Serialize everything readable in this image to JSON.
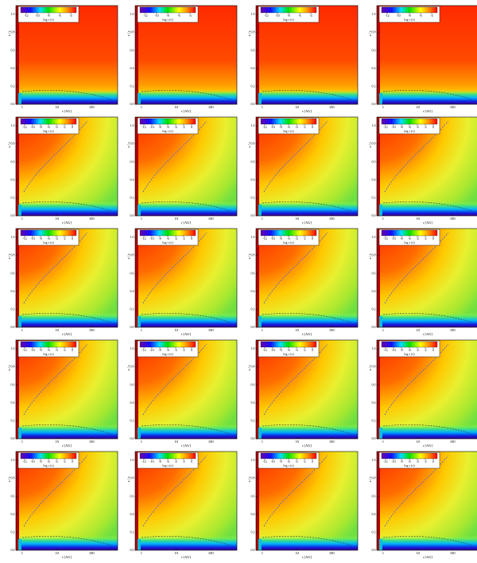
{
  "chart_data": [
    {
      "type": "heatmap",
      "xlabel": "r [AU]",
      "ylabel": "z / r",
      "colorbar_label": "log τ (ν)",
      "xscale": "log",
      "xlim": [
        0.66,
        560
      ],
      "xticks": [
        1,
        10,
        100
      ],
      "ylim": [
        0,
        1.1
      ],
      "yticks": [
        {
          "value": 0,
          "label": "0.0"
        },
        {
          "value": 0.2,
          "label": "0.2"
        },
        {
          "value": 0.4,
          "label": "0.4"
        },
        {
          "value": 0.6,
          "label": "0.6"
        },
        {
          "value": 0.8,
          "label": "0.8"
        },
        {
          "value": 1,
          "label": "1.0"
        }
      ],
      "clim": [
        -13,
        -3
      ],
      "cticks": [
        -12,
        -10,
        -8,
        -6,
        -4
      ]
    },
    {
      "type": "heatmap",
      "xlabel": "r [AU]",
      "ylabel": "z / r",
      "colorbar_label": "log τ (ν)",
      "xscale": "log",
      "xlim": [
        0.66,
        560
      ],
      "xticks": [
        1,
        10,
        100
      ],
      "ylim": [
        0,
        1.1
      ],
      "yticks": [
        {
          "value": 0,
          "label": "0.0"
        },
        {
          "value": 0.2,
          "label": "0.2"
        },
        {
          "value": 0.4,
          "label": "0.4"
        },
        {
          "value": 0.6,
          "label": "0.6"
        },
        {
          "value": 0.8,
          "label": "0.8"
        },
        {
          "value": 1,
          "label": "1.0"
        }
      ],
      "clim": [
        -13,
        -3
      ],
      "cticks": [
        -12,
        -10,
        -8,
        -6,
        -4
      ]
    },
    {
      "type": "heatmap",
      "xlabel": "r [AU]",
      "ylabel": "z / r",
      "colorbar_label": "log τ (ν)",
      "xscale": "log",
      "xlim": [
        0.66,
        560
      ],
      "xticks": [
        1,
        10,
        100
      ],
      "ylim": [
        0,
        1.1
      ],
      "yticks": [
        {
          "value": 0,
          "label": "0.0"
        },
        {
          "value": 0.2,
          "label": "0.2"
        },
        {
          "value": 0.4,
          "label": "0.4"
        },
        {
          "value": 0.6,
          "label": "0.6"
        },
        {
          "value": 0.8,
          "label": "0.8"
        },
        {
          "value": 1,
          "label": "1.0"
        }
      ],
      "clim": [
        -13,
        -3
      ],
      "cticks": [
        -12,
        -10,
        -8,
        -6,
        -4
      ]
    },
    {
      "type": "heatmap",
      "xlabel": "r [AU]",
      "ylabel": "z / r",
      "colorbar_label": "log τ (ν)",
      "xscale": "log",
      "xlim": [
        0.66,
        560
      ],
      "xticks": [
        1,
        10,
        100
      ],
      "ylim": [
        0,
        1.1
      ],
      "yticks": [
        {
          "value": 0,
          "label": "0.0"
        },
        {
          "value": 0.2,
          "label": "0.2"
        },
        {
          "value": 0.4,
          "label": "0.4"
        },
        {
          "value": 0.6,
          "label": "0.6"
        },
        {
          "value": 0.8,
          "label": "0.8"
        },
        {
          "value": 1,
          "label": "1.0"
        }
      ],
      "clim": [
        -13,
        -3
      ],
      "cticks": [
        -12,
        -10,
        -8,
        -6,
        -4
      ]
    },
    {
      "type": "heatmap",
      "xlabel": "r [AU]",
      "ylabel": "z / r",
      "colorbar_label": "log τ (ν)",
      "xscale": "log",
      "xlim": [
        0.66,
        560
      ],
      "xticks": [
        1,
        10,
        100
      ],
      "ylim": [
        0,
        1.1
      ],
      "yticks": [
        {
          "value": 0,
          "label": "0.0"
        },
        {
          "value": 0.2,
          "label": "0.2"
        },
        {
          "value": 0.4,
          "label": "0.4"
        },
        {
          "value": 0.6,
          "label": "0.6"
        },
        {
          "value": 0.8,
          "label": "0.8"
        },
        {
          "value": 1,
          "label": "1.0"
        }
      ],
      "clim": [
        -13,
        1
      ],
      "cticks": [
        -12,
        -10,
        -8,
        -6,
        -4,
        -2,
        0
      ]
    },
    {
      "type": "heatmap",
      "xlabel": "r [AU]",
      "ylabel": "z / r",
      "colorbar_label": "log τ (ν)",
      "xscale": "log",
      "xlim": [
        0.66,
        560
      ],
      "xticks": [
        1,
        10,
        100
      ],
      "ylim": [
        0,
        1.1
      ],
      "yticks": [
        {
          "value": 0,
          "label": "0.0"
        },
        {
          "value": 0.2,
          "label": "0.2"
        },
        {
          "value": 0.4,
          "label": "0.4"
        },
        {
          "value": 0.6,
          "label": "0.6"
        },
        {
          "value": 0.8,
          "label": "0.8"
        },
        {
          "value": 1,
          "label": "1.0"
        }
      ],
      "clim": [
        -13,
        1
      ],
      "cticks": [
        -12,
        -10,
        -8,
        -6,
        -4,
        -2,
        0
      ]
    },
    {
      "type": "heatmap",
      "xlabel": "r [AU]",
      "ylabel": "z / r",
      "colorbar_label": "log τ (ν)",
      "xscale": "log",
      "xlim": [
        0.66,
        560
      ],
      "xticks": [
        1,
        10,
        100
      ],
      "ylim": [
        0,
        1.1
      ],
      "yticks": [
        {
          "value": 0,
          "label": "0.0"
        },
        {
          "value": 0.2,
          "label": "0.2"
        },
        {
          "value": 0.4,
          "label": "0.4"
        },
        {
          "value": 0.6,
          "label": "0.6"
        },
        {
          "value": 0.8,
          "label": "0.8"
        },
        {
          "value": 1,
          "label": "1.0"
        }
      ],
      "clim": [
        -13,
        1
      ],
      "cticks": [
        -12,
        -10,
        -8,
        -6,
        -4,
        -2,
        0
      ]
    },
    {
      "type": "heatmap",
      "xlabel": "r [AU]",
      "ylabel": "z / r",
      "colorbar_label": "log τ (ν)",
      "xscale": "log",
      "xlim": [
        0.66,
        560
      ],
      "xticks": [
        1,
        10,
        100
      ],
      "ylim": [
        0,
        1.1
      ],
      "yticks": [
        {
          "value": 0,
          "label": "0.0"
        },
        {
          "value": 0.2,
          "label": "0.2"
        },
        {
          "value": 0.4,
          "label": "0.4"
        },
        {
          "value": 0.6,
          "label": "0.6"
        },
        {
          "value": 0.8,
          "label": "0.8"
        },
        {
          "value": 1,
          "label": "1.0"
        }
      ],
      "clim": [
        -13,
        1
      ],
      "cticks": [
        -12,
        -10,
        -8,
        -6,
        -4,
        -2,
        0
      ]
    },
    {
      "type": "heatmap",
      "xlabel": "r [AU]",
      "ylabel": "z / r",
      "colorbar_label": "log τ (ν)",
      "xscale": "log",
      "xlim": [
        0.66,
        560
      ],
      "xticks": [
        1,
        10,
        100
      ],
      "ylim": [
        0,
        1.1
      ],
      "yticks": [
        {
          "value": 0,
          "label": "0.0"
        },
        {
          "value": 0.2,
          "label": "0.2"
        },
        {
          "value": 0.4,
          "label": "0.4"
        },
        {
          "value": 0.6,
          "label": "0.6"
        },
        {
          "value": 0.8,
          "label": "0.8"
        },
        {
          "value": 1,
          "label": "1.0"
        }
      ],
      "clim": [
        -13,
        1
      ],
      "cticks": [
        -12,
        -10,
        -8,
        -6,
        -4,
        -2,
        0
      ]
    },
    {
      "type": "heatmap",
      "xlabel": "r [AU]",
      "ylabel": "z / r",
      "colorbar_label": "log τ (ν)",
      "xscale": "log",
      "xlim": [
        0.66,
        560
      ],
      "xticks": [
        1,
        10,
        100
      ],
      "ylim": [
        0,
        1.1
      ],
      "yticks": [
        {
          "value": 0,
          "label": "0.0"
        },
        {
          "value": 0.2,
          "label": "0.2"
        },
        {
          "value": 0.4,
          "label": "0.4"
        },
        {
          "value": 0.6,
          "label": "0.6"
        },
        {
          "value": 0.8,
          "label": "0.8"
        },
        {
          "value": 1,
          "label": "1.0"
        }
      ],
      "clim": [
        -13,
        1
      ],
      "cticks": [
        -12,
        -10,
        -8,
        -6,
        -4,
        -2,
        0
      ]
    },
    {
      "type": "heatmap",
      "xlabel": "r [AU]",
      "ylabel": "z / r",
      "colorbar_label": "log τ (ν)",
      "xscale": "log",
      "xlim": [
        0.66,
        560
      ],
      "xticks": [
        1,
        10,
        100
      ],
      "ylim": [
        0,
        1.1
      ],
      "yticks": [
        {
          "value": 0,
          "label": "0.0"
        },
        {
          "value": 0.2,
          "label": "0.2"
        },
        {
          "value": 0.4,
          "label": "0.4"
        },
        {
          "value": 0.6,
          "label": "0.6"
        },
        {
          "value": 0.8,
          "label": "0.8"
        },
        {
          "value": 1,
          "label": "1.0"
        }
      ],
      "clim": [
        -13,
        1
      ],
      "cticks": [
        -12,
        -10,
        -8,
        -6,
        -4,
        -2,
        0
      ]
    },
    {
      "type": "heatmap",
      "xlabel": "r [AU]",
      "ylabel": "z / r",
      "colorbar_label": "log τ (ν)",
      "xscale": "log",
      "xlim": [
        0.66,
        560
      ],
      "xticks": [
        1,
        10,
        100
      ],
      "ylim": [
        0,
        1.1
      ],
      "yticks": [
        {
          "value": 0,
          "label": "0.0"
        },
        {
          "value": 0.2,
          "label": "0.2"
        },
        {
          "value": 0.4,
          "label": "0.4"
        },
        {
          "value": 0.6,
          "label": "0.6"
        },
        {
          "value": 0.8,
          "label": "0.8"
        },
        {
          "value": 1,
          "label": "1.0"
        }
      ],
      "clim": [
        -13,
        1
      ],
      "cticks": [
        -12,
        -10,
        -8,
        -6,
        -4,
        -2,
        0
      ]
    },
    {
      "type": "heatmap",
      "xlabel": "r [AU]",
      "ylabel": "z / r",
      "colorbar_label": "log τ (ν)",
      "xscale": "log",
      "xlim": [
        0.66,
        560
      ],
      "xticks": [
        1,
        10,
        100
      ],
      "ylim": [
        0,
        1.1
      ],
      "yticks": [
        {
          "value": 0,
          "label": "0.0"
        },
        {
          "value": 0.2,
          "label": "0.2"
        },
        {
          "value": 0.4,
          "label": "0.4"
        },
        {
          "value": 0.6,
          "label": "0.6"
        },
        {
          "value": 0.8,
          "label": "0.8"
        },
        {
          "value": 1,
          "label": "1.0"
        }
      ],
      "clim": [
        -13,
        1
      ],
      "cticks": [
        -12,
        -10,
        -8,
        -6,
        -4,
        -2,
        0
      ]
    },
    {
      "type": "heatmap",
      "xlabel": "r [AU]",
      "ylabel": "z / r",
      "colorbar_label": "log τ (ν)",
      "xscale": "log",
      "xlim": [
        0.66,
        560
      ],
      "xticks": [
        1,
        10,
        100
      ],
      "ylim": [
        0,
        1.1
      ],
      "yticks": [
        {
          "value": 0,
          "label": "0.0"
        },
        {
          "value": 0.2,
          "label": "0.2"
        },
        {
          "value": 0.4,
          "label": "0.4"
        },
        {
          "value": 0.6,
          "label": "0.6"
        },
        {
          "value": 0.8,
          "label": "0.8"
        },
        {
          "value": 1,
          "label": "1.0"
        }
      ],
      "clim": [
        -13,
        1
      ],
      "cticks": [
        -12,
        -10,
        -8,
        -6,
        -4,
        -2,
        0
      ]
    },
    {
      "type": "heatmap",
      "xlabel": "r [AU]",
      "ylabel": "z / r",
      "colorbar_label": "log τ (ν)",
      "xscale": "log",
      "xlim": [
        0.66,
        560
      ],
      "xticks": [
        1,
        10,
        100
      ],
      "ylim": [
        0,
        1.1
      ],
      "yticks": [
        {
          "value": 0,
          "label": "0.0"
        },
        {
          "value": 0.2,
          "label": "0.2"
        },
        {
          "value": 0.4,
          "label": "0.4"
        },
        {
          "value": 0.6,
          "label": "0.6"
        },
        {
          "value": 0.8,
          "label": "0.8"
        },
        {
          "value": 1,
          "label": "1.0"
        }
      ],
      "clim": [
        -13,
        1
      ],
      "cticks": [
        -12,
        -10,
        -8,
        -6,
        -4,
        -2,
        0
      ]
    },
    {
      "type": "heatmap",
      "xlabel": "r [AU]",
      "ylabel": "z / r",
      "colorbar_label": "log τ (ν)",
      "xscale": "log",
      "xlim": [
        0.66,
        560
      ],
      "xticks": [
        1,
        10,
        100
      ],
      "ylim": [
        0,
        1.1
      ],
      "yticks": [
        {
          "value": 0,
          "label": "0.0"
        },
        {
          "value": 0.2,
          "label": "0.2"
        },
        {
          "value": 0.4,
          "label": "0.4"
        },
        {
          "value": 0.6,
          "label": "0.6"
        },
        {
          "value": 0.8,
          "label": "0.8"
        },
        {
          "value": 1,
          "label": "1.0"
        }
      ],
      "clim": [
        -13,
        1
      ],
      "cticks": [
        -12,
        -10,
        -8,
        -6,
        -4,
        -2,
        0
      ]
    },
    {
      "type": "heatmap",
      "xlabel": "r [AU]",
      "ylabel": "z / r",
      "colorbar_label": "log τ (ν)",
      "xscale": "log",
      "xlim": [
        0.66,
        560
      ],
      "xticks": [
        1,
        10,
        100
      ],
      "ylim": [
        0,
        1.1
      ],
      "yticks": [
        {
          "value": 0,
          "label": "0.0"
        },
        {
          "value": 0.2,
          "label": "0.2"
        },
        {
          "value": 0.4,
          "label": "0.4"
        },
        {
          "value": 0.6,
          "label": "0.6"
        },
        {
          "value": 0.8,
          "label": "0.8"
        },
        {
          "value": 1,
          "label": "1.0"
        }
      ],
      "clim": [
        -13,
        1
      ],
      "cticks": [
        -12,
        -10,
        -8,
        -6,
        -4,
        -2,
        0
      ]
    },
    {
      "type": "heatmap",
      "xlabel": "r [AU]",
      "ylabel": "z / r",
      "colorbar_label": "log τ (ν)",
      "xscale": "log",
      "xlim": [
        0.66,
        560
      ],
      "xticks": [
        1,
        10,
        100
      ],
      "ylim": [
        0,
        1.1
      ],
      "yticks": [
        {
          "value": 0,
          "label": "0.0"
        },
        {
          "value": 0.2,
          "label": "0.2"
        },
        {
          "value": 0.4,
          "label": "0.4"
        },
        {
          "value": 0.6,
          "label": "0.6"
        },
        {
          "value": 0.8,
          "label": "0.8"
        },
        {
          "value": 1,
          "label": "1.0"
        }
      ],
      "clim": [
        -13,
        1
      ],
      "cticks": [
        -12,
        -10,
        -8,
        -6,
        -4,
        -2,
        0
      ]
    },
    {
      "type": "heatmap",
      "xlabel": "r [AU]",
      "ylabel": "z / r",
      "colorbar_label": "log τ (ν)",
      "xscale": "log",
      "xlim": [
        0.66,
        560
      ],
      "xticks": [
        1,
        10,
        100
      ],
      "ylim": [
        0,
        1.1
      ],
      "yticks": [
        {
          "value": 0,
          "label": "0.0"
        },
        {
          "value": 0.2,
          "label": "0.2"
        },
        {
          "value": 0.4,
          "label": "0.4"
        },
        {
          "value": 0.6,
          "label": "0.6"
        },
        {
          "value": 0.8,
          "label": "0.8"
        },
        {
          "value": 1,
          "label": "1.0"
        }
      ],
      "clim": [
        -13,
        1
      ],
      "cticks": [
        -12,
        -10,
        -8,
        -6,
        -4,
        -2,
        0
      ]
    },
    {
      "type": "heatmap",
      "xlabel": "r [AU]",
      "ylabel": "z / r",
      "colorbar_label": "log τ (ν)",
      "xscale": "log",
      "xlim": [
        0.66,
        560
      ],
      "xticks": [
        1,
        10,
        100
      ],
      "ylim": [
        0,
        1.1
      ],
      "yticks": [
        {
          "value": 0,
          "label": "0.0"
        },
        {
          "value": 0.2,
          "label": "0.2"
        },
        {
          "value": 0.4,
          "label": "0.4"
        },
        {
          "value": 0.6,
          "label": "0.6"
        },
        {
          "value": 0.8,
          "label": "0.8"
        },
        {
          "value": 1,
          "label": "1.0"
        }
      ],
      "clim": [
        -13,
        1
      ],
      "cticks": [
        -12,
        -10,
        -8,
        -6,
        -4,
        -2,
        0
      ]
    }
  ]
}
